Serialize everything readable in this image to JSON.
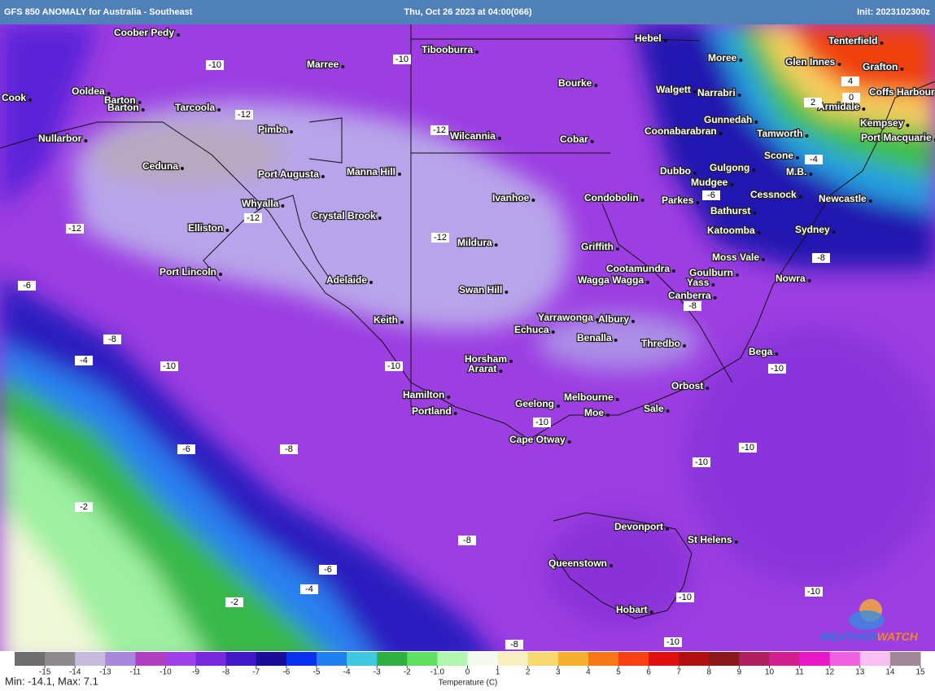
{
  "header": {
    "title": "GFS 850 ANOMALY for Australia - Southeast",
    "valid": "Thu, Oct 26 2023 at 04:00(066)",
    "init": "Init: 2023102300z"
  },
  "places": [
    "Coober Pedy",
    "Marree",
    "Tibooburra",
    "Hebel",
    "Moree",
    "Glen Innes",
    "Tenterfield",
    "Grafton",
    "Coffs Harbour",
    "Armidale",
    "Cook",
    "Ooldea",
    "Barton",
    "Barton",
    "Tarcoola",
    "Pimba",
    "Wilcannia",
    "Cobar",
    "Bourke",
    "Walgett",
    "Narrabri",
    "Gunnedah",
    "Coonabarabran",
    "Tamworth",
    "Kempsey",
    "Port Macquarie",
    "Nullarbor",
    "Ceduna",
    "Port Augusta",
    "Manna Hill",
    "Scone",
    "Dubbo",
    "Gulgong",
    "Mudgee",
    "M.B.",
    "Parkes",
    "Cessnock",
    "Newcastle",
    "Ivanhoe",
    "Condobolin",
    "Whyalla",
    "Crystal Brook",
    "Bathurst",
    "Elliston",
    "Katoomba",
    "Sydney",
    "Mildura",
    "Griffith",
    "Moss Vale",
    "Cootamundra",
    "Goulburn",
    "Port Lincoln",
    "Nowra",
    "Wagga Wagga",
    "Adelaide",
    "Yass",
    "Swan Hill",
    "Canberra",
    "Yarrawonga",
    "Albury",
    "Keith",
    "Echuca",
    "Benalla",
    "Thredbo",
    "Bega",
    "Horsham",
    "Ararat",
    "Orbost",
    "Hamilton",
    "Melbourne",
    "Geelong",
    "Portland",
    "Moe",
    "Sale",
    "Cape Otway",
    "Devonport",
    "St Helens",
    "Queenstown",
    "Hobart"
  ],
  "contour_labels": [
    -10,
    -10,
    -12,
    -12,
    -12,
    -12,
    -12,
    -4,
    -6,
    -8,
    -6,
    -8,
    -4,
    -10,
    -10,
    -8,
    -10,
    -10,
    -6,
    -8,
    -10,
    -10,
    -2,
    -8,
    -6,
    -4,
    -2,
    -10,
    -10,
    -8,
    -10,
    4,
    2,
    0
  ],
  "colorbar": {
    "title": "Temperature (C)",
    "colors": [
      "#6e6e6e",
      "#8e8a8e",
      "#c6bade",
      "#a888dc",
      "#b040c0",
      "#a040e8",
      "#7a28e0",
      "#4018c8",
      "#1a0e98",
      "#0a30f0",
      "#2080f0",
      "#40c8e0",
      "#30b040",
      "#60e060",
      "#b0f8b0",
      "#f4faf0",
      "#f8f0c0",
      "#f8d870",
      "#f8b030",
      "#f87818",
      "#f84010",
      "#e01010",
      "#b01010",
      "#8a1a1a",
      "#b02060",
      "#d02090",
      "#e818c8",
      "#f060e0",
      "#f8c0f0",
      "#a08898"
    ],
    "ticks": [
      -15,
      -14,
      -13,
      -11,
      -10,
      -9,
      -8,
      -7,
      -6,
      -5,
      -4,
      -3,
      -2,
      {
        "value": -1,
        "label": "-1.0"
      },
      0,
      1,
      2,
      3,
      4,
      5,
      6,
      7,
      8,
      9,
      10,
      11,
      12,
      13,
      14,
      15
    ]
  },
  "stats": "Min: -14.1, Max: 7.1",
  "logo": {
    "part1": "WEATHER",
    "part2": "WATCH"
  }
}
